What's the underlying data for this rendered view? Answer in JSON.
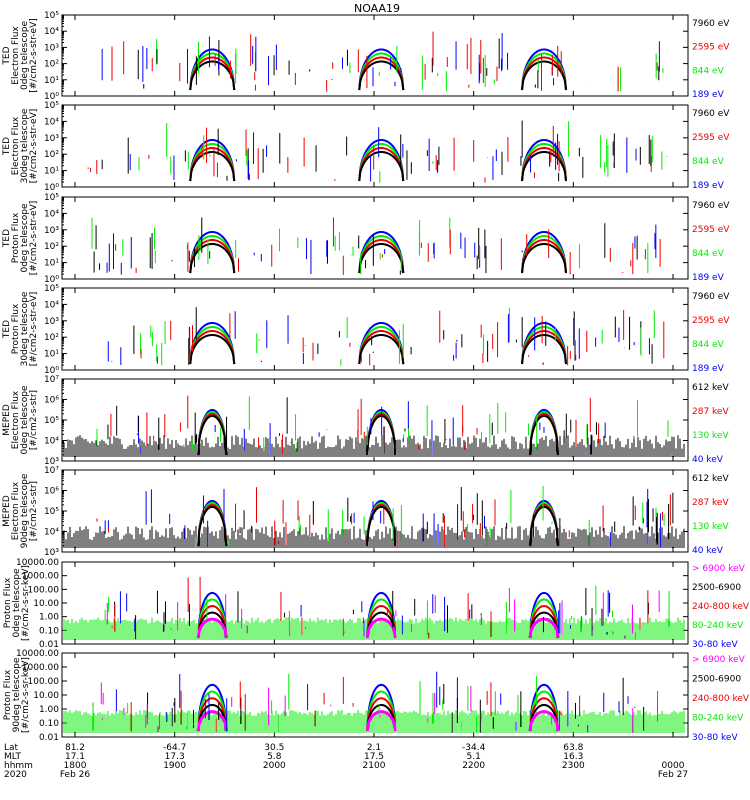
{
  "figure": {
    "title": "NOAA19",
    "time_axis": {
      "row_labels": [
        "Lat",
        "MLT",
        "hhmm",
        "2020"
      ],
      "columns": [
        {
          "lat": "81.2",
          "mlt": "17.1",
          "hhmm": "1800",
          "date": "Feb 26"
        },
        {
          "lat": "-64.7",
          "mlt": "17.3",
          "hhmm": "1900",
          "date": ""
        },
        {
          "lat": "30.5",
          "mlt": "5.8",
          "hhmm": "2000",
          "date": ""
        },
        {
          "lat": "2.1",
          "mlt": "17.5",
          "hhmm": "2100",
          "date": ""
        },
        {
          "lat": "-34.4",
          "mlt": "5.1",
          "hhmm": "2200",
          "date": ""
        },
        {
          "lat": "63.8",
          "mlt": "16.3",
          "hhmm": "2300",
          "date": ""
        },
        {
          "lat": "",
          "mlt": "",
          "hhmm": "0000",
          "date": "Feb 27"
        }
      ]
    }
  },
  "colors": {
    "black": "#000000",
    "red": "#ee0000",
    "green": "#00ee00",
    "blue": "#0000ff",
    "magenta": "#ff00ff",
    "grey": "#444444"
  },
  "chart_data": [
    {
      "type": "line",
      "ylabel_lines": [
        "TED",
        "Electron Flux",
        "0deg telescope",
        "[#/cm2-s-str-eV]"
      ],
      "yscale": "log",
      "ylim": [
        1,
        100000
      ],
      "y_ticks": [
        "10⁰",
        "10¹",
        "10²",
        "10³",
        "10⁴",
        "10⁵"
      ],
      "series": [
        {
          "name": "7960 eV",
          "color": "#000000"
        },
        {
          "name": "2595 eV",
          "color": "#ee0000"
        },
        {
          "name": "844 eV",
          "color": "#00ee00"
        },
        {
          "name": "189 eV",
          "color": "#0000ff"
        }
      ]
    },
    {
      "type": "line",
      "ylabel_lines": [
        "TED",
        "Electron Flux",
        "30deg telescope",
        "[#/cm2-s-str-eV]"
      ],
      "yscale": "log",
      "ylim": [
        1,
        100000
      ],
      "y_ticks": [
        "10⁰",
        "10¹",
        "10²",
        "10³",
        "10⁴",
        "10⁵"
      ],
      "series": [
        {
          "name": "7960 eV",
          "color": "#000000"
        },
        {
          "name": "2595 eV",
          "color": "#ee0000"
        },
        {
          "name": "844 eV",
          "color": "#00ee00"
        },
        {
          "name": "189 eV",
          "color": "#0000ff"
        }
      ]
    },
    {
      "type": "line",
      "ylabel_lines": [
        "TED",
        "Proton Flux",
        "0deg telescope",
        "[#/cm2-s-str-eV]"
      ],
      "yscale": "log",
      "ylim": [
        1,
        100000
      ],
      "y_ticks": [
        "10⁰",
        "10¹",
        "10²",
        "10³",
        "10⁴",
        "10⁵"
      ],
      "series": [
        {
          "name": "7960 eV",
          "color": "#000000"
        },
        {
          "name": "2595 eV",
          "color": "#ee0000"
        },
        {
          "name": "844 eV",
          "color": "#00ee00"
        },
        {
          "name": "189 eV",
          "color": "#0000ff"
        }
      ]
    },
    {
      "type": "line",
      "ylabel_lines": [
        "TED",
        "Proton Flux",
        "30deg telescope",
        "[#/cm2-s-str-eV]"
      ],
      "yscale": "log",
      "ylim": [
        1,
        100000
      ],
      "y_ticks": [
        "10⁰",
        "10¹",
        "10²",
        "10³",
        "10⁴",
        "10⁵"
      ],
      "series": [
        {
          "name": "7960 eV",
          "color": "#000000"
        },
        {
          "name": "2595 eV",
          "color": "#ee0000"
        },
        {
          "name": "844 eV",
          "color": "#00ee00"
        },
        {
          "name": "189 eV",
          "color": "#0000ff"
        }
      ]
    },
    {
      "type": "line",
      "ylabel_lines": [
        "MEPED",
        "Electron Flux",
        "0deg telescope",
        "[#/cm2-s-str]"
      ],
      "yscale": "log",
      "ylim": [
        1000,
        10000000
      ],
      "y_ticks": [
        "10³",
        "10⁴",
        "10⁵",
        "10⁶",
        "10⁷"
      ],
      "series": [
        {
          "name": "612 keV",
          "color": "#000000"
        },
        {
          "name": "287 keV",
          "color": "#ee0000"
        },
        {
          "name": "130 keV",
          "color": "#00ee00"
        },
        {
          "name": "40 keV",
          "color": "#0000ff"
        }
      ]
    },
    {
      "type": "line",
      "ylabel_lines": [
        "MEPED",
        "Electron Flux",
        "90deg telescope",
        "[#/cm2-s-str]"
      ],
      "yscale": "log",
      "ylim": [
        1000,
        10000000
      ],
      "y_ticks": [
        "10³",
        "10⁴",
        "10⁵",
        "10⁶",
        "10⁷"
      ],
      "series": [
        {
          "name": "612 keV",
          "color": "#000000"
        },
        {
          "name": "287 keV",
          "color": "#ee0000"
        },
        {
          "name": "130 keV",
          "color": "#00ee00"
        },
        {
          "name": "40 keV",
          "color": "#0000ff"
        }
      ]
    },
    {
      "type": "line",
      "ylabel_lines": [
        "Proton Flux",
        "0deg telescope",
        "[#/cm2-s-sr-keV]"
      ],
      "yscale": "log",
      "ylim": [
        0.01,
        10000
      ],
      "y_ticks": [
        "0.01",
        "0.10",
        "1.00",
        "10.00",
        "100.00",
        "1000.00",
        "10000.00"
      ],
      "series": [
        {
          "name": "> 6900 keV",
          "color": "#ff00ff"
        },
        {
          "name": "2500-6900",
          "color": "#000000"
        },
        {
          "name": "240-800 keV",
          "color": "#ee0000"
        },
        {
          "name": "80-240 keV",
          "color": "#00ee00"
        },
        {
          "name": "30-80 keV",
          "color": "#0000ff"
        }
      ]
    },
    {
      "type": "line",
      "ylabel_lines": [
        "Proton Flux",
        "90deg telescope",
        "[#/cm2-s-sr-keV]"
      ],
      "yscale": "log",
      "ylim": [
        0.01,
        10000
      ],
      "y_ticks": [
        "0.01",
        "0.10",
        "1.00",
        "10.00",
        "100.00",
        "1000.00",
        "10000.00"
      ],
      "series": [
        {
          "name": "> 6900 keV",
          "color": "#ff00ff"
        },
        {
          "name": "2500-6900",
          "color": "#000000"
        },
        {
          "name": "240-800 keV",
          "color": "#ee0000"
        },
        {
          "name": "80-240 keV",
          "color": "#00ee00"
        },
        {
          "name": "30-80 keV",
          "color": "#0000ff"
        }
      ]
    }
  ]
}
